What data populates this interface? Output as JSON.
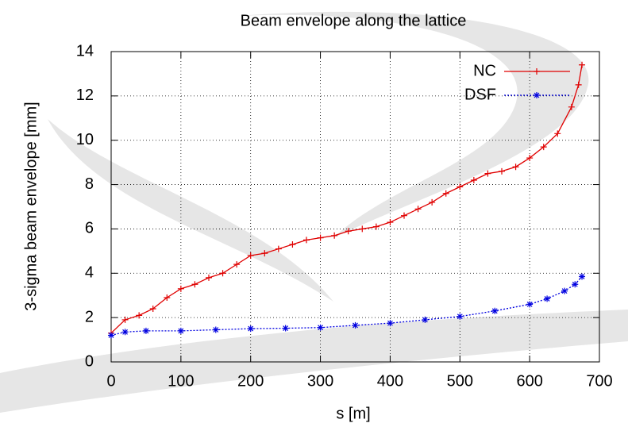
{
  "chart_data": {
    "type": "line",
    "title": "Beam envelope along the lattice",
    "x_label": "s [m]",
    "y_label": "3-sigma beam envelope [mm]",
    "xlim": [
      0,
      700
    ],
    "ylim": [
      0,
      14
    ],
    "xticks": [
      0,
      100,
      200,
      300,
      400,
      500,
      600,
      700
    ],
    "yticks": [
      0,
      2,
      4,
      6,
      8,
      10,
      12,
      14
    ],
    "grid": true,
    "legend": "top-right",
    "series": [
      {
        "name": "NC",
        "color": "#e00000",
        "marker": "+",
        "dash": "solid",
        "x": [
          0,
          20,
          40,
          60,
          80,
          100,
          120,
          140,
          160,
          180,
          200,
          220,
          240,
          260,
          280,
          300,
          320,
          340,
          360,
          380,
          400,
          420,
          440,
          460,
          480,
          500,
          520,
          540,
          560,
          580,
          600,
          620,
          640,
          660,
          670,
          675
        ],
        "values": [
          1.3,
          1.9,
          2.1,
          2.4,
          2.9,
          3.3,
          3.5,
          3.8,
          4.0,
          4.4,
          4.8,
          4.9,
          5.1,
          5.3,
          5.5,
          5.6,
          5.7,
          5.9,
          6.0,
          6.1,
          6.3,
          6.6,
          6.9,
          7.2,
          7.6,
          7.9,
          8.2,
          8.5,
          8.6,
          8.8,
          9.2,
          9.7,
          10.3,
          11.5,
          12.5,
          13.4
        ]
      },
      {
        "name": "DSF",
        "color": "#0000e0",
        "marker": "*",
        "dash": "dotted",
        "x": [
          0,
          20,
          50,
          100,
          150,
          200,
          250,
          300,
          350,
          400,
          450,
          500,
          550,
          600,
          625,
          650,
          665,
          675
        ],
        "values": [
          1.2,
          1.35,
          1.4,
          1.4,
          1.45,
          1.5,
          1.52,
          1.55,
          1.65,
          1.75,
          1.9,
          2.05,
          2.3,
          2.6,
          2.85,
          3.2,
          3.5,
          3.85
        ]
      }
    ]
  }
}
